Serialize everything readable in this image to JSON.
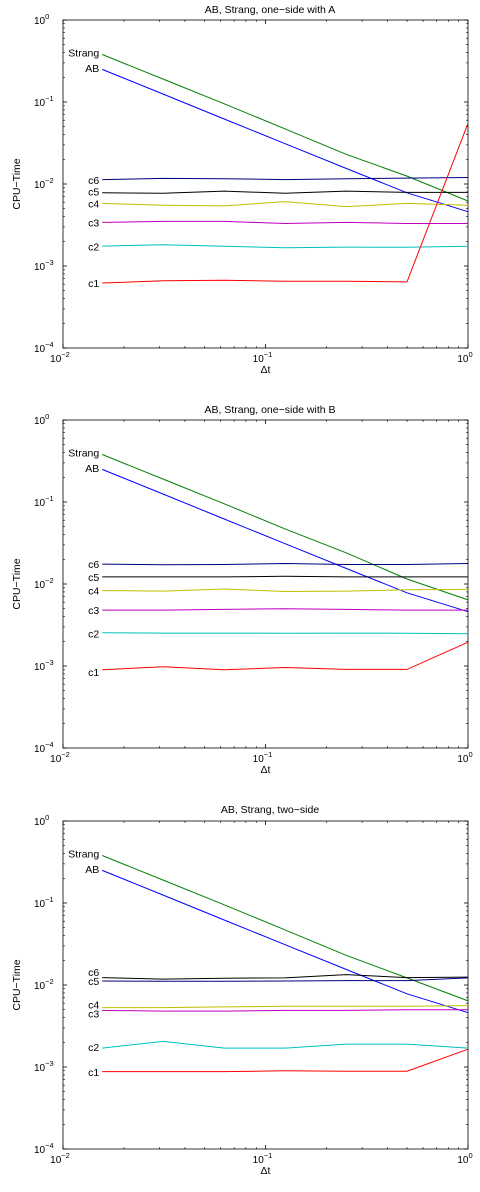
{
  "chart_data": [
    {
      "type": "line",
      "title": "AB, Strang, one−side with A",
      "xlabel": "Δt",
      "ylabel": "CPU−Time",
      "xscale": "log",
      "yscale": "log",
      "xlim": [
        0.01,
        1
      ],
      "ylim": [
        0.0001,
        1
      ],
      "xtick_labels": [
        {
          "base": "10",
          "exp": "−2"
        },
        {
          "base": "10",
          "exp": "−1"
        },
        {
          "base": "10",
          "exp": "0"
        }
      ],
      "ytick_labels": [
        {
          "base": "10",
          "exp": "−4"
        },
        {
          "base": "10",
          "exp": "−3"
        },
        {
          "base": "10",
          "exp": "−2"
        },
        {
          "base": "10",
          "exp": "−1"
        },
        {
          "base": "10",
          "exp": "0"
        }
      ],
      "grid": false,
      "x": [
        0.015625,
        0.03125,
        0.0625,
        0.125,
        0.25,
        0.5,
        1
      ],
      "series": [
        {
          "name": "Strang",
          "color": "#007f00",
          "values": [
            0.38,
            0.19,
            0.095,
            0.047,
            0.023,
            0.0125,
            0.0062
          ]
        },
        {
          "name": "AB",
          "color": "#0000ff",
          "values": [
            0.25,
            0.125,
            0.062,
            0.031,
            0.0155,
            0.0078,
            0.0046
          ]
        },
        {
          "name": "c6",
          "color": "#00007f",
          "values": [
            0.0113,
            0.0117,
            0.0116,
            0.0113,
            0.0116,
            0.0118,
            0.012
          ]
        },
        {
          "name": "c5",
          "color": "#000000",
          "values": [
            0.0078,
            0.0077,
            0.0082,
            0.0077,
            0.0082,
            0.0079,
            0.0079
          ]
        },
        {
          "name": "c4",
          "color": "#bfbf00",
          "values": [
            0.0058,
            0.0055,
            0.0054,
            0.0061,
            0.0053,
            0.0058,
            0.0055
          ]
        },
        {
          "name": "c3",
          "color": "#bf00bf",
          "values": [
            0.0034,
            0.0035,
            0.0035,
            0.0033,
            0.0034,
            0.0033,
            0.0033
          ]
        },
        {
          "name": "c2",
          "color": "#00bfbf",
          "values": [
            0.00175,
            0.00182,
            0.00174,
            0.00167,
            0.0017,
            0.00169,
            0.00174
          ]
        },
        {
          "name": "c1",
          "color": "#ff0000",
          "values": [
            0.00062,
            0.00066,
            0.00067,
            0.00065,
            0.00065,
            0.00064,
            0.055
          ]
        }
      ],
      "label_positions": {
        "Strang": 0.4,
        "AB": 0.26,
        "c6": 0.0112,
        "c5": 0.0081,
        "c4": 0.0058,
        "c3": 0.0034,
        "c2": 0.00172,
        "c1": 0.00062
      }
    },
    {
      "type": "line",
      "title": "AB, Strang, one−side with B",
      "xlabel": "Δt",
      "ylabel": "CPU−Time",
      "xscale": "log",
      "yscale": "log",
      "xlim": [
        0.01,
        1
      ],
      "ylim": [
        0.0001,
        1
      ],
      "xtick_labels": [
        {
          "base": "10",
          "exp": "−2"
        },
        {
          "base": "10",
          "exp": "−1"
        },
        {
          "base": "10",
          "exp": "0"
        }
      ],
      "ytick_labels": [
        {
          "base": "10",
          "exp": "−4"
        },
        {
          "base": "10",
          "exp": "−3"
        },
        {
          "base": "10",
          "exp": "−2"
        },
        {
          "base": "10",
          "exp": "−1"
        },
        {
          "base": "10",
          "exp": "0"
        }
      ],
      "grid": false,
      "x": [
        0.015625,
        0.03125,
        0.0625,
        0.125,
        0.25,
        0.5,
        1
      ],
      "series": [
        {
          "name": "Strang",
          "color": "#007f00",
          "values": [
            0.38,
            0.19,
            0.095,
            0.047,
            0.024,
            0.0115,
            0.0064
          ]
        },
        {
          "name": "AB",
          "color": "#0000ff",
          "values": [
            0.25,
            0.125,
            0.062,
            0.031,
            0.0155,
            0.0078,
            0.0046
          ]
        },
        {
          "name": "c6",
          "color": "#00007f",
          "values": [
            0.0175,
            0.0172,
            0.0173,
            0.0178,
            0.0173,
            0.0173,
            0.0178
          ]
        },
        {
          "name": "c5",
          "color": "#000000",
          "values": [
            0.0122,
            0.0122,
            0.0122,
            0.0124,
            0.0122,
            0.0122,
            0.0122
          ]
        },
        {
          "name": "c4",
          "color": "#bfbf00",
          "values": [
            0.0083,
            0.0082,
            0.0087,
            0.0081,
            0.0082,
            0.0085,
            0.0086
          ]
        },
        {
          "name": "c3",
          "color": "#bf00bf",
          "values": [
            0.0048,
            0.0048,
            0.0049,
            0.005,
            0.0049,
            0.0048,
            0.0048
          ]
        },
        {
          "name": "c2",
          "color": "#00bfbf",
          "values": [
            0.00255,
            0.00252,
            0.00252,
            0.00251,
            0.00252,
            0.00251,
            0.00248
          ]
        },
        {
          "name": "c1",
          "color": "#ff0000",
          "values": [
            0.0009,
            0.00098,
            0.0009,
            0.00096,
            0.00091,
            0.00091,
            0.00195
          ]
        }
      ],
      "label_positions": {
        "Strang": 0.4,
        "AB": 0.26,
        "c6": 0.0175,
        "c5": 0.0122,
        "c4": 0.0083,
        "c3": 0.0048,
        "c2": 0.0025,
        "c1": 0.00085
      }
    },
    {
      "type": "line",
      "title": "AB, Strang, two−side",
      "xlabel": "Δt",
      "ylabel": "CPU−Time",
      "xscale": "log",
      "yscale": "log",
      "xlim": [
        0.01,
        1
      ],
      "ylim": [
        0.0001,
        1
      ],
      "xtick_labels": [
        {
          "base": "10",
          "exp": "−2"
        },
        {
          "base": "10",
          "exp": "−1"
        },
        {
          "base": "10",
          "exp": "0"
        }
      ],
      "ytick_labels": [
        {
          "base": "10",
          "exp": "−4"
        },
        {
          "base": "10",
          "exp": "−3"
        },
        {
          "base": "10",
          "exp": "−2"
        },
        {
          "base": "10",
          "exp": "−1"
        },
        {
          "base": "10",
          "exp": "0"
        }
      ],
      "grid": false,
      "x": [
        0.015625,
        0.03125,
        0.0625,
        0.125,
        0.25,
        0.5,
        1
      ],
      "series": [
        {
          "name": "Strang",
          "color": "#007f00",
          "values": [
            0.38,
            0.19,
            0.095,
            0.047,
            0.023,
            0.0122,
            0.0064
          ]
        },
        {
          "name": "AB",
          "color": "#0000ff",
          "values": [
            0.25,
            0.125,
            0.062,
            0.031,
            0.0155,
            0.0078,
            0.0046
          ]
        },
        {
          "name": "c6",
          "color": "#000000",
          "values": [
            0.0123,
            0.0118,
            0.0121,
            0.0122,
            0.0134,
            0.0123,
            0.0125
          ]
        },
        {
          "name": "c5",
          "color": "#00007f",
          "values": [
            0.0112,
            0.0111,
            0.0111,
            0.0112,
            0.0113,
            0.0113,
            0.0122
          ]
        },
        {
          "name": "c4",
          "color": "#bfbf00",
          "values": [
            0.0053,
            0.0053,
            0.0054,
            0.0055,
            0.0055,
            0.0055,
            0.0056
          ]
        },
        {
          "name": "c3",
          "color": "#bf00bf",
          "values": [
            0.0049,
            0.0048,
            0.0048,
            0.0049,
            0.0049,
            0.005,
            0.005
          ]
        },
        {
          "name": "c2",
          "color": "#00bfbf",
          "values": [
            0.0017,
            0.00205,
            0.0017,
            0.0017,
            0.0019,
            0.0019,
            0.0017
          ]
        },
        {
          "name": "c1",
          "color": "#ff0000",
          "values": [
            0.00088,
            0.00088,
            0.00088,
            0.0009,
            0.00089,
            0.00089,
            0.00165
          ]
        }
      ],
      "label_positions": {
        "Strang": 0.4,
        "AB": 0.26,
        "c6": 0.0145,
        "c5": 0.0112,
        "c4": 0.0058,
        "c3": 0.0045,
        "c2": 0.00175,
        "c1": 0.00087
      }
    }
  ]
}
